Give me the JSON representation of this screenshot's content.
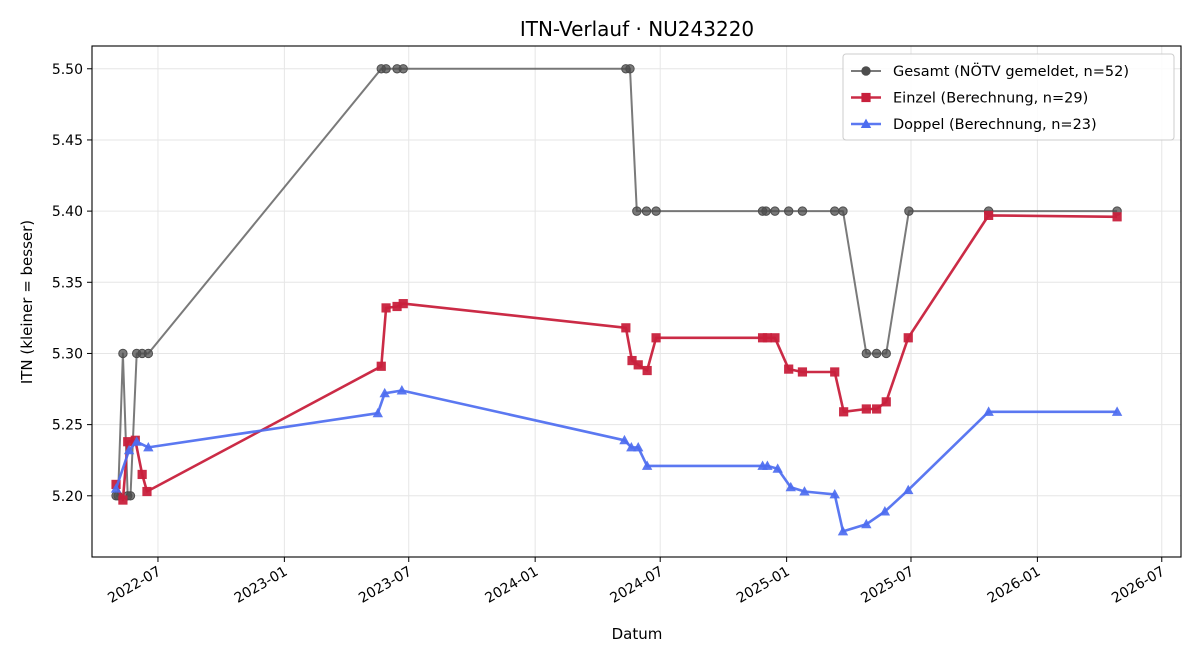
{
  "chart_data": {
    "type": "line",
    "title": "ITN-Verlauf · NU243220",
    "xlabel": "Datum",
    "ylabel": "ITN  (kleiner = besser)",
    "xlim": [
      "2022-03-27",
      "2026-07-29"
    ],
    "ylim": [
      5.157,
      5.516
    ],
    "x_ticks": [
      "2022-07",
      "2023-01",
      "2023-07",
      "2024-01",
      "2024-07",
      "2025-01",
      "2025-07",
      "2026-01",
      "2026-07"
    ],
    "y_ticks": [
      "5.20",
      "5.25",
      "5.30",
      "5.35",
      "5.40",
      "5.45",
      "5.50"
    ],
    "grid": true,
    "legend_position": "top-right",
    "series": [
      {
        "name": "Gesamt (NÖTV gemeldet, n=52)",
        "color": "#4d4d4d",
        "marker": "circle",
        "points": [
          [
            "2022-05-01",
            5.2
          ],
          [
            "2022-05-04",
            5.2
          ],
          [
            "2022-05-11",
            5.3
          ],
          [
            "2022-05-18",
            5.2
          ],
          [
            "2022-05-22",
            5.2
          ],
          [
            "2022-05-31",
            5.3
          ],
          [
            "2022-06-08",
            5.3
          ],
          [
            "2022-06-17",
            5.3
          ],
          [
            "2023-05-22",
            5.5
          ],
          [
            "2023-05-29",
            5.5
          ],
          [
            "2023-06-14",
            5.5
          ],
          [
            "2023-06-23",
            5.5
          ],
          [
            "2024-05-12",
            5.5
          ],
          [
            "2024-05-18",
            5.5
          ],
          [
            "2024-05-28",
            5.4
          ],
          [
            "2024-06-11",
            5.4
          ],
          [
            "2024-06-25",
            5.4
          ],
          [
            "2024-11-27",
            5.4
          ],
          [
            "2024-12-02",
            5.4
          ],
          [
            "2024-12-15",
            5.4
          ],
          [
            "2025-01-04",
            5.4
          ],
          [
            "2025-01-24",
            5.4
          ],
          [
            "2025-03-12",
            5.4
          ],
          [
            "2025-03-24",
            5.4
          ],
          [
            "2025-04-27",
            5.3
          ],
          [
            "2025-05-12",
            5.3
          ],
          [
            "2025-05-26",
            5.3
          ],
          [
            "2025-06-28",
            5.4
          ],
          [
            "2025-10-22",
            5.4
          ],
          [
            "2026-04-27",
            5.4
          ]
        ]
      },
      {
        "name": "Einzel (Berechnung, n=29)",
        "color": "#c8203c",
        "marker": "square",
        "points": [
          [
            "2022-05-01",
            5.208
          ],
          [
            "2022-05-11",
            5.197
          ],
          [
            "2022-05-18",
            5.238
          ],
          [
            "2022-05-29",
            5.239
          ],
          [
            "2022-06-08",
            5.215
          ],
          [
            "2022-06-15",
            5.203
          ],
          [
            "2023-05-22",
            5.291
          ],
          [
            "2023-05-29",
            5.332
          ],
          [
            "2023-06-14",
            5.333
          ],
          [
            "2023-06-23",
            5.335
          ],
          [
            "2024-05-12",
            5.318
          ],
          [
            "2024-05-21",
            5.295
          ],
          [
            "2024-05-30",
            5.292
          ],
          [
            "2024-06-12",
            5.288
          ],
          [
            "2024-06-25",
            5.311
          ],
          [
            "2024-11-27",
            5.311
          ],
          [
            "2024-12-04",
            5.311
          ],
          [
            "2024-12-15",
            5.311
          ],
          [
            "2025-01-04",
            5.289
          ],
          [
            "2025-01-24",
            5.287
          ],
          [
            "2025-03-12",
            5.287
          ],
          [
            "2025-03-25",
            5.259
          ],
          [
            "2025-04-27",
            5.261
          ],
          [
            "2025-05-12",
            5.261
          ],
          [
            "2025-05-26",
            5.266
          ],
          [
            "2025-06-27",
            5.311
          ],
          [
            "2025-10-22",
            5.397
          ],
          [
            "2026-04-27",
            5.396
          ]
        ]
      },
      {
        "name": "Doppel (Berechnung, n=23)",
        "color": "#4d6df0",
        "marker": "triangle",
        "points": [
          [
            "2022-05-01",
            5.205
          ],
          [
            "2022-05-20",
            5.232
          ],
          [
            "2022-05-31",
            5.238
          ],
          [
            "2022-06-17",
            5.234
          ],
          [
            "2023-05-17",
            5.258
          ],
          [
            "2023-05-27",
            5.272
          ],
          [
            "2023-06-21",
            5.274
          ],
          [
            "2024-05-10",
            5.239
          ],
          [
            "2024-05-20",
            5.234
          ],
          [
            "2024-05-30",
            5.234
          ],
          [
            "2024-06-12",
            5.221
          ],
          [
            "2024-11-27",
            5.221
          ],
          [
            "2024-12-04",
            5.221
          ],
          [
            "2024-12-19",
            5.219
          ],
          [
            "2025-01-07",
            5.206
          ],
          [
            "2025-01-27",
            5.203
          ],
          [
            "2025-03-12",
            5.201
          ],
          [
            "2025-03-24",
            5.175
          ],
          [
            "2025-04-27",
            5.18
          ],
          [
            "2025-05-24",
            5.189
          ],
          [
            "2025-06-27",
            5.204
          ],
          [
            "2025-10-22",
            5.259
          ],
          [
            "2026-04-27",
            5.259
          ]
        ]
      }
    ]
  }
}
